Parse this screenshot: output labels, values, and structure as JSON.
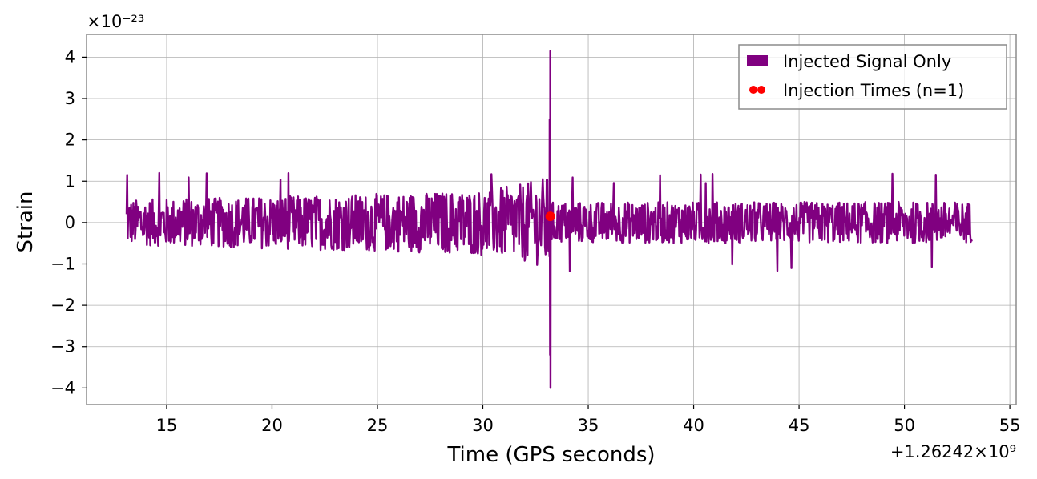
{
  "chart_data": {
    "type": "line",
    "xlabel": "Time (GPS seconds)",
    "ylabel": "Strain",
    "x_offset_label": "+1.26242×10⁹",
    "y_scale_label": "×10⁻²³",
    "xlim": [
      11.2,
      55.3
    ],
    "ylim": [
      -4.4,
      4.55
    ],
    "x_ticks": [
      15,
      20,
      25,
      30,
      35,
      40,
      45,
      50,
      55
    ],
    "x_tick_labels": [
      "15",
      "20",
      "25",
      "30",
      "35",
      "40",
      "45",
      "50",
      "55"
    ],
    "y_ticks": [
      -4,
      -3,
      -2,
      -1,
      0,
      1,
      2,
      3,
      4
    ],
    "y_tick_labels": [
      "−4",
      "−3",
      "−2",
      "−1",
      "0",
      "1",
      "2",
      "3",
      "4"
    ],
    "grid": true,
    "legend_position": "top-right",
    "series": [
      {
        "name": "Injected Signal Only",
        "kind": "line",
        "color": "#800080",
        "x_start": 13.1,
        "x_end": 53.2,
        "noise_envelope_peak": 1.2,
        "noise_envelope_trough": -1.3,
        "chirp_time": 33.2,
        "chirp_peak": 4.15,
        "chirp_trough": -4.0
      },
      {
        "name": "Injection Times (n=1)",
        "kind": "scatter",
        "color": "#ff0000",
        "points": [
          {
            "x": 33.2,
            "y": 0.15
          }
        ]
      }
    ]
  }
}
